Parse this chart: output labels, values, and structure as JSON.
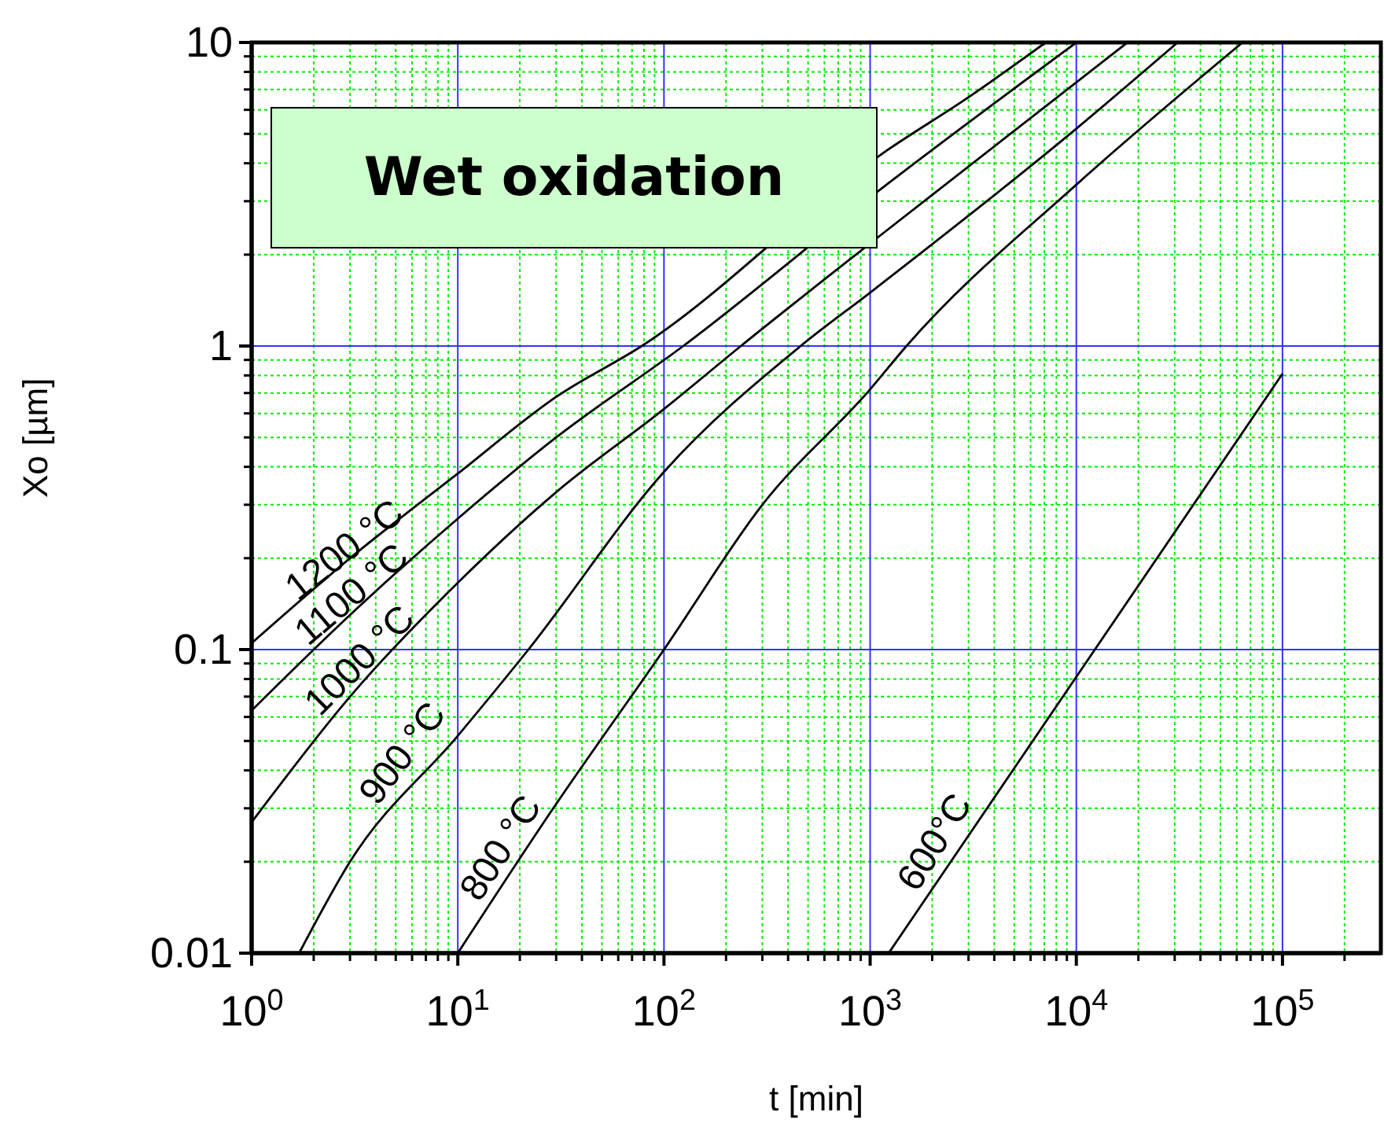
{
  "chart_data": {
    "type": "line",
    "title": "Wet oxidation",
    "xlabel": "t  [min]",
    "ylabel": "Xo  [µm]",
    "log": "xy",
    "grid": true,
    "xlim": [
      1,
      300000
    ],
    "ylim": [
      0.01,
      10
    ],
    "xticks": [
      {
        "value": 1,
        "label": "10$^{0}$"
      },
      {
        "value": 2,
        "label": null
      },
      {
        "value": 3,
        "label": null
      },
      {
        "value": 4,
        "label": null
      },
      {
        "value": 5,
        "label": null
      },
      {
        "value": 6,
        "label": null
      },
      {
        "value": 7,
        "label": null
      },
      {
        "value": 8,
        "label": null
      },
      {
        "value": 9,
        "label": null
      },
      {
        "value": 10,
        "label": "10$^{1}$"
      },
      {
        "value": 20,
        "label": null
      },
      {
        "value": 30,
        "label": null
      },
      {
        "value": 40,
        "label": null
      },
      {
        "value": 50,
        "label": null
      },
      {
        "value": 60,
        "label": null
      },
      {
        "value": 70,
        "label": null
      },
      {
        "value": 80,
        "label": null
      },
      {
        "value": 90,
        "label": null
      },
      {
        "value": 100,
        "label": "10$^{2}$"
      },
      {
        "value": 200,
        "label": null
      },
      {
        "value": 300,
        "label": null
      },
      {
        "value": 400,
        "label": null
      },
      {
        "value": 500,
        "label": null
      },
      {
        "value": 600,
        "label": null
      },
      {
        "value": 700,
        "label": null
      },
      {
        "value": 800,
        "label": null
      },
      {
        "value": 900,
        "label": null
      },
      {
        "value": 1000,
        "label": "10$^{3}$"
      },
      {
        "value": 2000,
        "label": null
      },
      {
        "value": 3000,
        "label": null
      },
      {
        "value": 4000,
        "label": null
      },
      {
        "value": 5000,
        "label": null
      },
      {
        "value": 6000,
        "label": null
      },
      {
        "value": 7000,
        "label": null
      },
      {
        "value": 8000,
        "label": null
      },
      {
        "value": 9000,
        "label": null
      },
      {
        "value": 10000,
        "label": "10$^{4}$"
      },
      {
        "value": 20000,
        "label": null
      },
      {
        "value": 30000,
        "label": null
      },
      {
        "value": 40000,
        "label": null
      },
      {
        "value": 50000,
        "label": null
      },
      {
        "value": 60000,
        "label": null
      },
      {
        "value": 70000,
        "label": null
      },
      {
        "value": 80000,
        "label": null
      },
      {
        "value": 90000,
        "label": null
      },
      {
        "value": 100000,
        "label": "10$^{5}$"
      },
      {
        "value": 200000,
        "label": null
      }
    ],
    "yticks": [
      0.01,
      {
        "value": 0.02,
        "label": null
      },
      {
        "value": 0.03,
        "label": null
      },
      {
        "value": 0.04,
        "label": null
      },
      {
        "value": 0.05,
        "label": null
      },
      {
        "value": 0.06,
        "label": null
      },
      {
        "value": 0.07,
        "label": null
      },
      {
        "value": 0.08,
        "label": null
      },
      {
        "value": 0.09,
        "label": null
      },
      0.1,
      {
        "value": 0.2,
        "label": null
      },
      {
        "value": 0.3,
        "label": null
      },
      {
        "value": 0.4,
        "label": null
      },
      {
        "value": 0.5,
        "label": null
      },
      {
        "value": 0.6,
        "label": null
      },
      {
        "value": 0.7,
        "label": null
      },
      {
        "value": 0.8,
        "label": null
      },
      {
        "value": 0.9,
        "label": null
      },
      1,
      {
        "value": 2,
        "label": null
      },
      {
        "value": 3,
        "label": null
      },
      {
        "value": 4,
        "label": null
      },
      {
        "value": 5,
        "label": null
      },
      {
        "value": 6,
        "label": null
      },
      {
        "value": 7,
        "label": null
      },
      {
        "value": 8,
        "label": null
      },
      {
        "value": 9,
        "label": null
      },
      10
    ],
    "series": [
      {
        "name": "1200 °C",
        "color": "#000000",
        "x": [
          1,
          3,
          10,
          30,
          78,
          1200,
          3000,
          7100
        ],
        "values": [
          0.105,
          0.2,
          0.38,
          0.68,
          1.0,
          4.4,
          6.6,
          10
        ]
      },
      {
        "name": "1100 °C",
        "color": "#000000",
        "x": [
          1,
          3,
          10,
          30,
          124,
          1200,
          10000
        ],
        "values": [
          0.063,
          0.13,
          0.27,
          0.5,
          1.0,
          3.4,
          10
        ]
      },
      {
        "name": "1000 °C",
        "color": "#000000",
        "x": [
          1,
          3,
          10,
          30,
          100,
          236,
          1200,
          17700
        ],
        "values": [
          0.027,
          0.07,
          0.166,
          0.33,
          0.62,
          1.0,
          2.4,
          10
        ]
      },
      {
        "name": "900 °C",
        "color": "#000000",
        "x": [
          1.7,
          3,
          10,
          22,
          100,
          460,
          1000,
          10000,
          31000
        ],
        "values": [
          0.01,
          0.02,
          0.052,
          0.1,
          0.385,
          1.0,
          1.5,
          5.2,
          10
        ]
      },
      {
        "name": "800 °C",
        "color": "#000000",
        "x": [
          10,
          30,
          100,
          300,
          1000,
          1500,
          10000,
          64000
        ],
        "values": [
          0.01,
          0.031,
          0.1,
          0.3,
          0.72,
          1.0,
          3.4,
          10
        ]
      },
      {
        "name": "600°C",
        "color": "#000000",
        "x": [
          1230,
          12300,
          100000
        ],
        "values": [
          0.01,
          0.1,
          0.81
        ]
      }
    ]
  }
}
